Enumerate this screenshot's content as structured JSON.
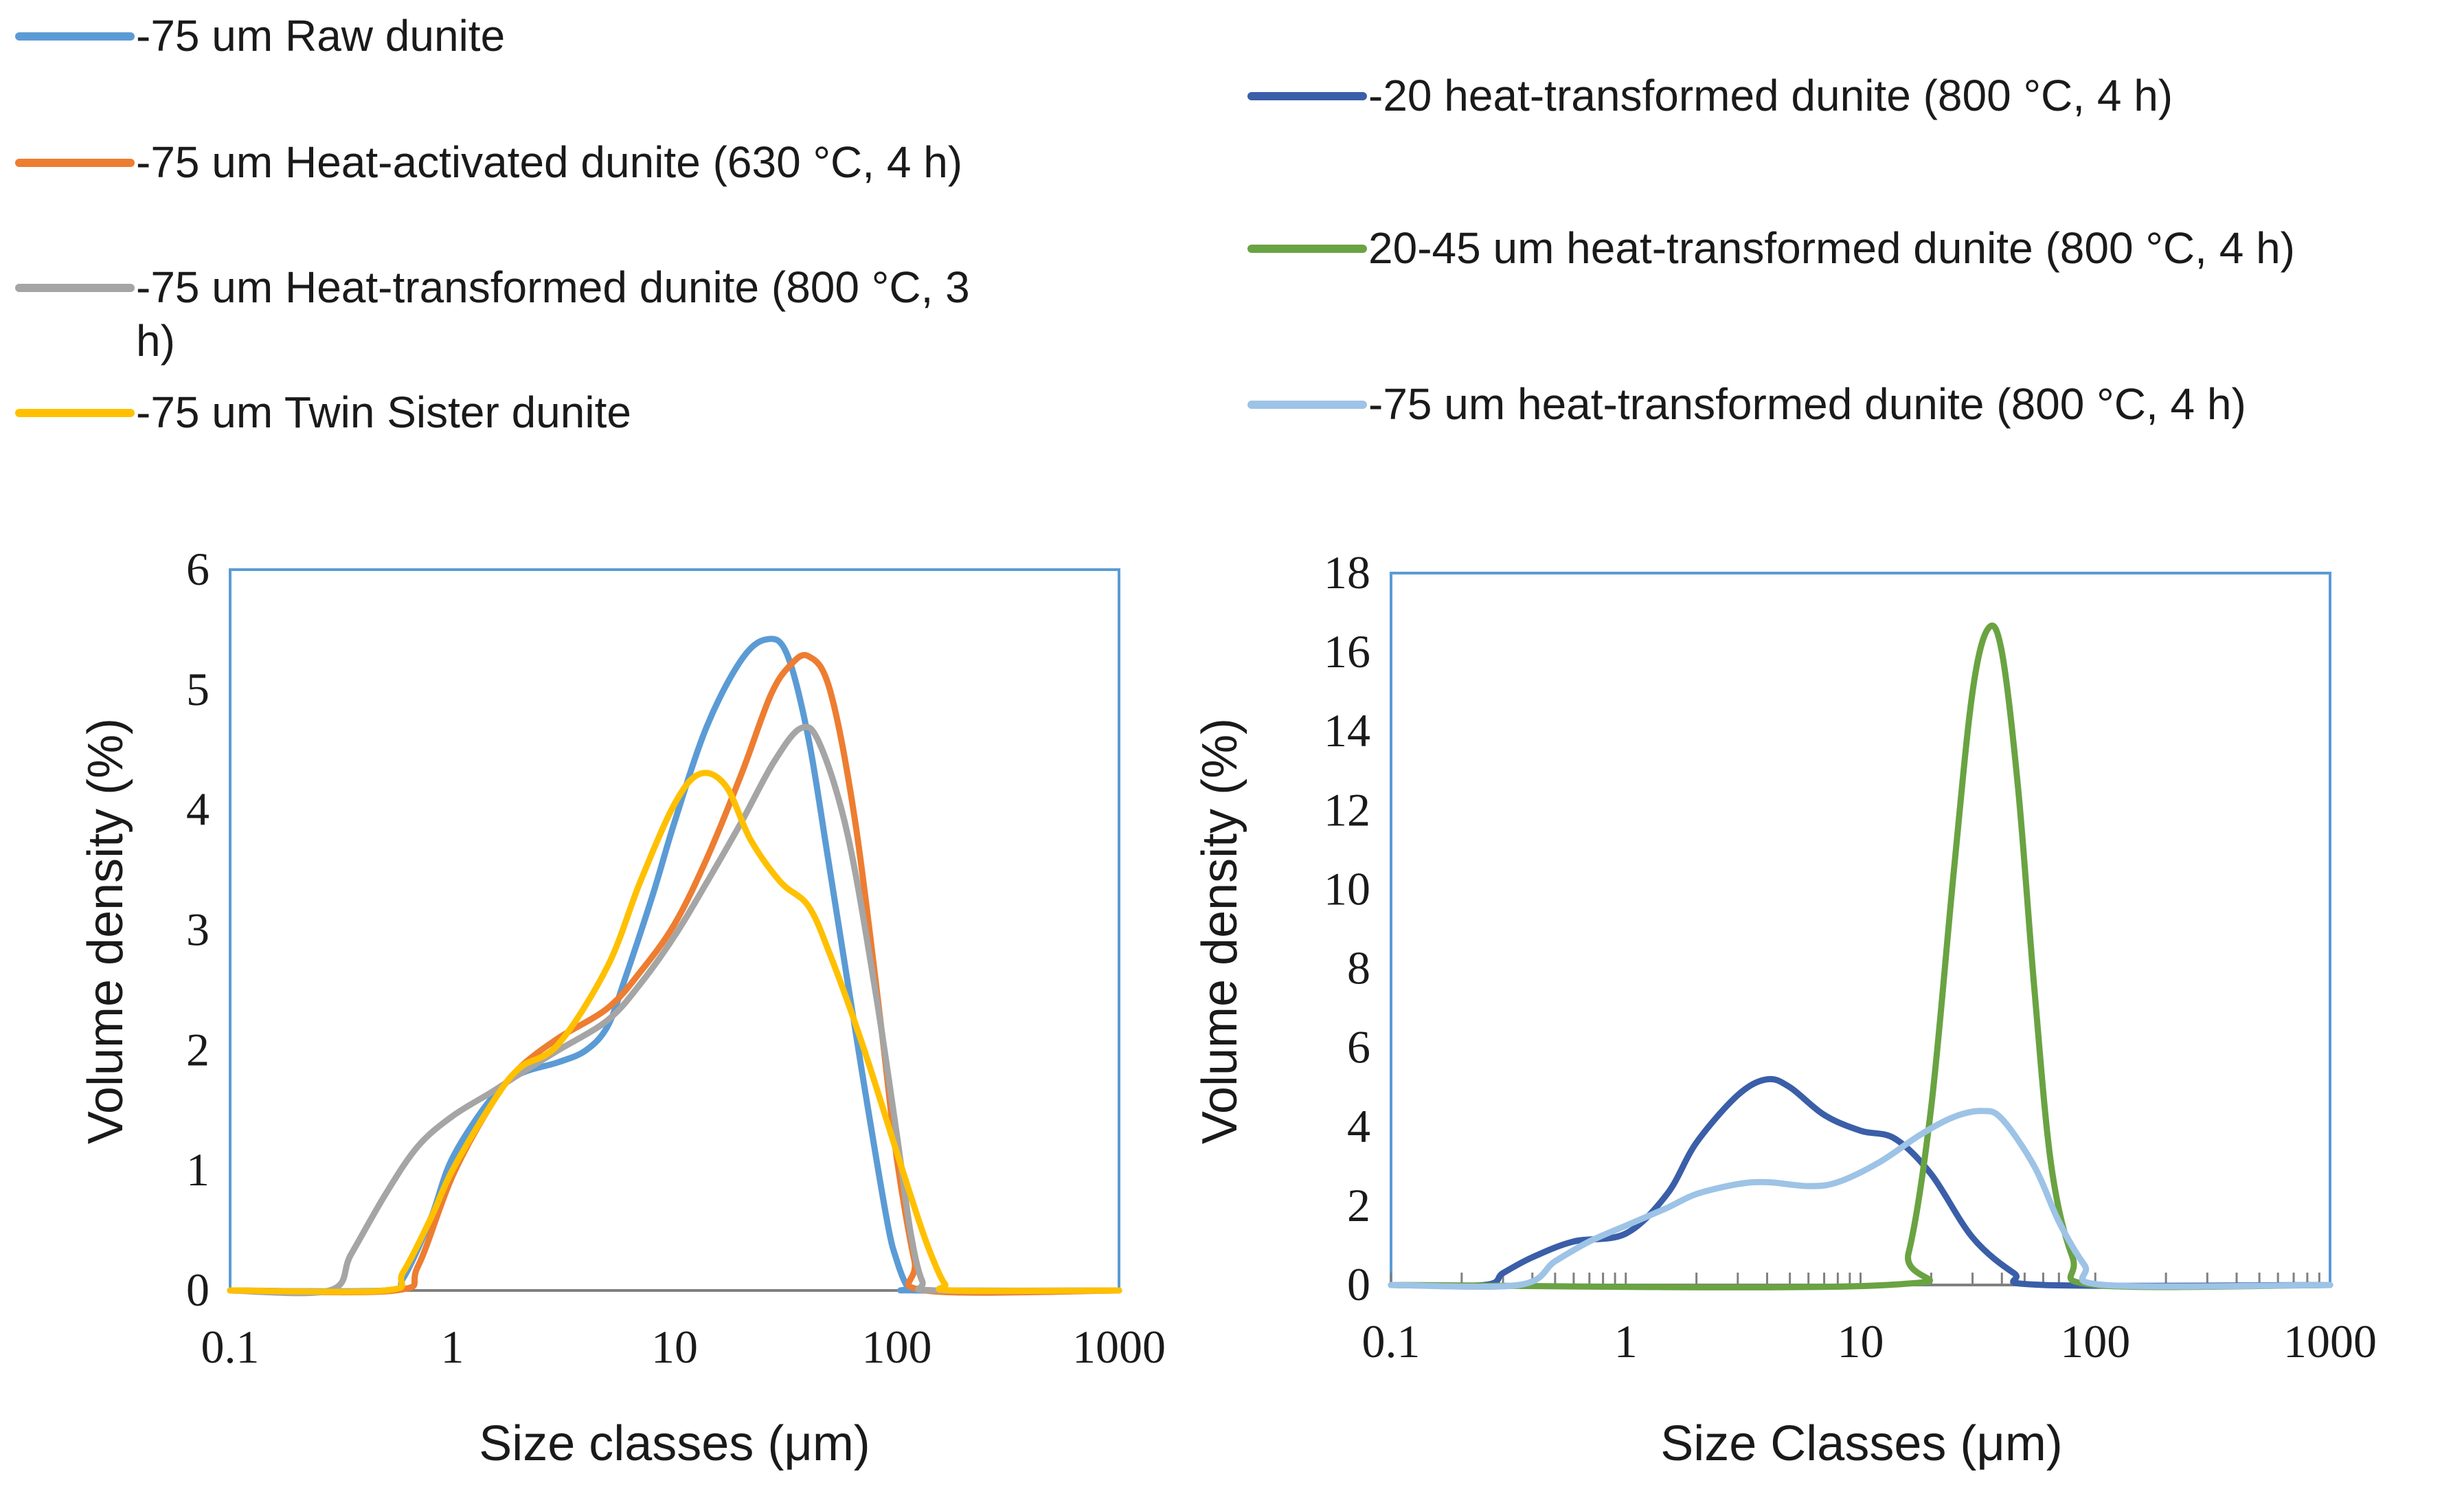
{
  "legend_left": [
    {
      "label": "-75 um Raw dunite",
      "color": "#5b9bd5"
    },
    {
      "label": "-75 um Heat-activated dunite (630 °C, 4 h)",
      "color": "#ed7d31"
    },
    {
      "label": "-75 um Heat-transformed dunite (800 °C, 3",
      "label_cont": "h)",
      "color": "#a5a5a5"
    },
    {
      "label": "-75 um Twin Sister dunite",
      "color": "#ffc000"
    }
  ],
  "legend_right": [
    {
      "label": "-20 heat-transformed dunite (800 °C, 4 h)",
      "color": "#3a5ea8"
    },
    {
      "label": "20-45 um heat-transformed dunite (800 °C, 4 h)",
      "color": "#6aa342"
    },
    {
      "label": "-75 um heat-transformed dunite (800 °C, 4 h)",
      "color": "#9dc3e6"
    }
  ],
  "chart_data": [
    {
      "type": "line",
      "xscale": "log",
      "title": "",
      "xlabel": "Size classes (μm)",
      "ylabel": "Volume density (%)",
      "xlim": [
        0.1,
        1000
      ],
      "ylim": [
        0,
        6
      ],
      "xticks": [
        "0.1",
        "1",
        "10",
        "100",
        "1000"
      ],
      "yticks": [
        "0",
        "1",
        "2",
        "3",
        "4",
        "5",
        "6"
      ],
      "series": [
        {
          "name": "-75 um Raw dunite",
          "color": "#5b9bd5",
          "x": [
            0.1,
            0.5,
            0.6,
            0.8,
            1.0,
            1.5,
            2,
            3,
            4,
            5,
            6,
            8,
            10,
            14,
            20,
            26,
            32,
            40,
            50,
            70,
            90,
            100,
            112,
            125,
            1000
          ],
          "y": [
            0,
            0,
            0.1,
            0.6,
            1.1,
            1.6,
            1.8,
            1.9,
            2.0,
            2.2,
            2.6,
            3.3,
            3.9,
            4.7,
            5.25,
            5.42,
            5.3,
            4.6,
            3.5,
            1.8,
            0.6,
            0.25,
            0.03,
            0,
            0
          ]
        },
        {
          "name": "-75 um Heat-activated dunite (630 °C, 4 h)",
          "color": "#ed7d31",
          "x": [
            0.1,
            0.55,
            0.7,
            1.0,
            1.5,
            2,
            3,
            5,
            7,
            10,
            14,
            20,
            27,
            33,
            40,
            50,
            65,
            85,
            100,
            120,
            135,
            1000
          ],
          "y": [
            0,
            0,
            0.2,
            0.95,
            1.55,
            1.85,
            2.1,
            2.35,
            2.65,
            3.05,
            3.6,
            4.3,
            4.95,
            5.2,
            5.28,
            5.0,
            3.9,
            2.2,
            1.1,
            0.25,
            0,
            0
          ]
        },
        {
          "name": "-75 um Heat-transformed dunite (800 °C, 3 h)",
          "color": "#a5a5a5",
          "x": [
            0.1,
            0.28,
            0.35,
            0.5,
            0.7,
            1.0,
            1.5,
            2,
            3,
            5,
            7,
            10,
            14,
            20,
            28,
            37,
            45,
            60,
            80,
            100,
            115,
            130,
            150,
            1000
          ],
          "y": [
            0,
            0,
            0.3,
            0.8,
            1.2,
            1.45,
            1.65,
            1.8,
            2.0,
            2.25,
            2.55,
            2.95,
            3.4,
            3.9,
            4.4,
            4.68,
            4.55,
            3.8,
            2.5,
            1.3,
            0.5,
            0.08,
            0,
            0
          ]
        },
        {
          "name": "-75 um Twin Sister dunite",
          "color": "#ffc000",
          "x": [
            0.1,
            0.5,
            0.6,
            0.8,
            1.0,
            1.5,
            2,
            3,
            5,
            7,
            10,
            13,
            17,
            22,
            30,
            40,
            50,
            70,
            100,
            130,
            150,
            165,
            180,
            1000
          ],
          "y": [
            0,
            0,
            0.15,
            0.6,
            1.0,
            1.55,
            1.85,
            2.05,
            2.7,
            3.4,
            4.05,
            4.3,
            4.2,
            3.75,
            3.4,
            3.2,
            2.8,
            2.05,
            1.15,
            0.5,
            0.2,
            0.05,
            0,
            0
          ]
        }
      ]
    },
    {
      "type": "line",
      "xscale": "log",
      "title": "",
      "xlabel": "Size Classes (μm)",
      "ylabel": "Volume density (%)",
      "xlim": [
        0.1,
        1000
      ],
      "ylim": [
        0,
        18
      ],
      "xticks": [
        "0.1",
        "1",
        "10",
        "100",
        "1000"
      ],
      "yticks": [
        "0",
        "2",
        "4",
        "6",
        "8",
        "10",
        "12",
        "14",
        "16",
        "18"
      ],
      "series": [
        {
          "name": "-20 heat-transformed dunite (800 °C, 4 h)",
          "color": "#3a5ea8",
          "x": [
            0.1,
            0.25,
            0.3,
            0.4,
            0.6,
            1.0,
            1.5,
            2,
            3,
            4,
            5,
            7,
            10,
            14,
            20,
            30,
            45,
            60,
            1000
          ],
          "y": [
            0,
            0,
            0.3,
            0.7,
            1.1,
            1.3,
            2.3,
            3.6,
            4.8,
            5.2,
            5.0,
            4.3,
            3.9,
            3.7,
            2.8,
            1.2,
            0.3,
            0,
            0
          ]
        },
        {
          "name": "20-45 um heat-transformed dunite (800 °C, 4 h)",
          "color": "#6aa342",
          "x": [
            0.1,
            13,
            16,
            20,
            25,
            30,
            35,
            40,
            47,
            55,
            65,
            80,
            100,
            1000
          ],
          "y": [
            0,
            0,
            0.8,
            4.5,
            10.5,
            15.0,
            16.6,
            16.0,
            12.5,
            7.5,
            3.0,
            0.7,
            0,
            0
          ]
        },
        {
          "name": "-75 um heat-transformed dunite (800 °C, 4 h)",
          "color": "#9dc3e6",
          "x": [
            0.1,
            0.35,
            0.5,
            0.7,
            1.0,
            1.5,
            2,
            3,
            4,
            6,
            8,
            12,
            18,
            25,
            33,
            40,
            55,
            70,
            90,
            110,
            1000
          ],
          "y": [
            0,
            0,
            0.6,
            1.1,
            1.5,
            1.95,
            2.3,
            2.55,
            2.6,
            2.5,
            2.6,
            3.1,
            3.8,
            4.25,
            4.4,
            4.2,
            3.0,
            1.6,
            0.5,
            0,
            0
          ]
        }
      ]
    }
  ]
}
